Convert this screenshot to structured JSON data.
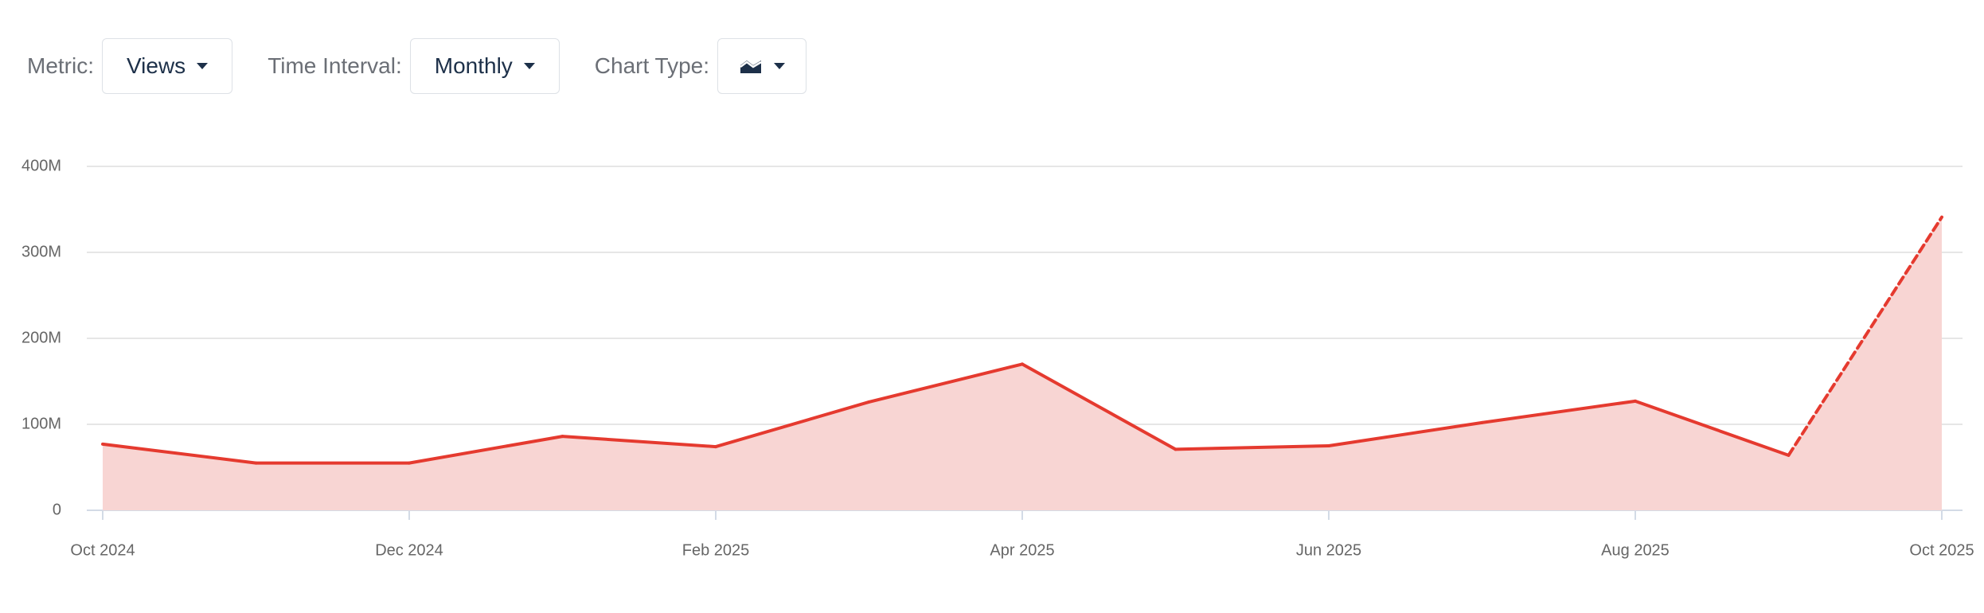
{
  "controls": [
    {
      "label": "Metric:",
      "value": "Views"
    },
    {
      "label": "Time Interval:",
      "value": "Monthly"
    },
    {
      "label": "Chart Type:"
    }
  ],
  "chart_data": {
    "type": "area",
    "categories": [
      "Oct 2024",
      null,
      "Dec 2024",
      null,
      "Feb 2025",
      null,
      "Apr 2025",
      null,
      "Jun 2025",
      null,
      "Aug 2025",
      null,
      "Oct 2025"
    ],
    "series": [
      {
        "name": "Views",
        "color": "#e53a2f",
        "fill": "#f8d5d3",
        "values": [
          77000000,
          55000000,
          55000000,
          86000000,
          74000000,
          126000000,
          170000000,
          71000000,
          75000000,
          102000000,
          127000000,
          64000000,
          341000000
        ]
      }
    ],
    "dashed_last_segment": true,
    "ylim": [
      0,
      400000000
    ],
    "yticks": [
      0,
      {
        "value": 100000000,
        "label": "100M"
      },
      {
        "value": 200000000,
        "label": "200M"
      },
      {
        "value": 300000000,
        "label": "300M"
      },
      {
        "value": 400000000,
        "label": "400M"
      }
    ],
    "grid": true
  }
}
